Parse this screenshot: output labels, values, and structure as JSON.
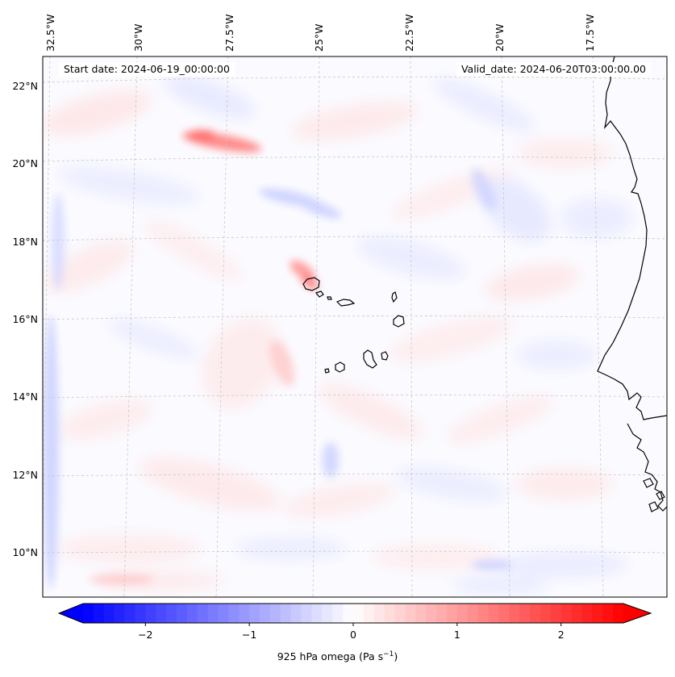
{
  "header": {
    "start_label": "Start date: 2024-06-19_00:00:00",
    "valid_label": "Valid_date: 2024-06-20T03:00:00.00"
  },
  "axes": {
    "lon_ticks": [
      "32.5°W",
      "30°W",
      "27.5°W",
      "25°W",
      "22.5°W",
      "20°W",
      "17.5°W"
    ],
    "lat_ticks": [
      "22°N",
      "20°N",
      "18°N",
      "16°N",
      "14°N",
      "12°N",
      "10°N"
    ]
  },
  "colorbar": {
    "tick_values": [
      -2,
      -1,
      0,
      1,
      2
    ],
    "tick_labels": [
      "−2",
      "−1",
      "0",
      "1",
      "2"
    ],
    "title": "925 hPa omega (Pa s",
    "title_sup": "−1",
    "title_end": ")",
    "range": [
      -2.6,
      2.6
    ],
    "colormap": "bwr",
    "low_color": "#0000ff",
    "mid_color": "#ffffff",
    "high_color": "#ff0000"
  },
  "chart_data": {
    "type": "heatmap",
    "variable": "925 hPa omega",
    "units": "Pa s-1",
    "lon_range": [
      -33,
      -15.5
    ],
    "lat_range": [
      9,
      22.8
    ],
    "value_range": [
      -2.6,
      2.6
    ],
    "features": [
      {
        "lat": 20.7,
        "lon": -27.6,
        "value": 1.2
      },
      {
        "lat": 17.0,
        "lon": -25.5,
        "value": 1.0
      },
      {
        "lat": 19.3,
        "lon": -25.5,
        "value": -0.6
      },
      {
        "lat": 13.0,
        "lon": -32.4,
        "value": -0.5
      }
    ]
  }
}
